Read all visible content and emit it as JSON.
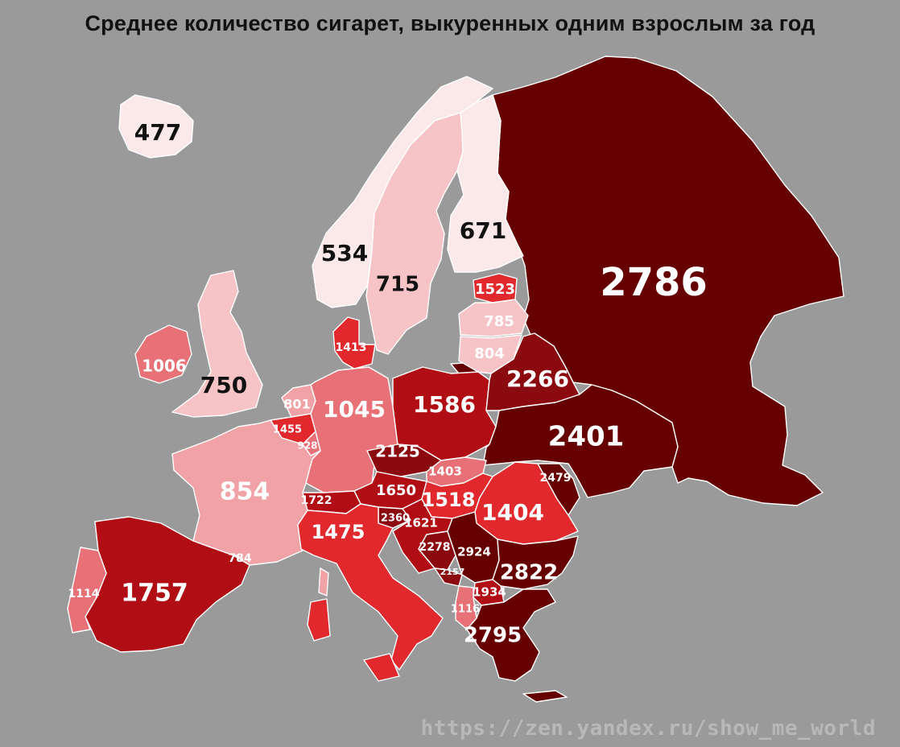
{
  "title": "Среднее количество сигарет, выкуренных одним взрослым за год",
  "watermark": "https://zen.yandex.ru/show_me_world",
  "colors": {
    "background": "#9a9a9a",
    "scale": [
      "#fbe8e9",
      "#f6c4c6",
      "#f0a2a6",
      "#e77176",
      "#e0282d",
      "#b00e14",
      "#8b0a10",
      "#660000"
    ]
  },
  "regions": [
    {
      "id": "iceland",
      "value": "477"
    },
    {
      "id": "norway",
      "value": "534"
    },
    {
      "id": "sweden",
      "value": "715"
    },
    {
      "id": "finland",
      "value": "671"
    },
    {
      "id": "russia",
      "value": "2786"
    },
    {
      "id": "estonia",
      "value": "1523"
    },
    {
      "id": "latvia",
      "value": "785"
    },
    {
      "id": "lithuania",
      "value": "804"
    },
    {
      "id": "belarus",
      "value": "2266"
    },
    {
      "id": "ukraine",
      "value": "2401"
    },
    {
      "id": "moldova",
      "value": "2479"
    },
    {
      "id": "poland",
      "value": "1586"
    },
    {
      "id": "germany",
      "value": "1045"
    },
    {
      "id": "denmark",
      "value": "1413"
    },
    {
      "id": "netherlands",
      "value": "801"
    },
    {
      "id": "belgium",
      "value": "1455"
    },
    {
      "id": "luxembourg",
      "value": "928"
    },
    {
      "id": "ireland",
      "value": "1006"
    },
    {
      "id": "united-kingdom",
      "value": "750"
    },
    {
      "id": "france",
      "value": "854"
    },
    {
      "id": "andorra",
      "value": "784"
    },
    {
      "id": "spain",
      "value": "1757"
    },
    {
      "id": "portugal",
      "value": "1114"
    },
    {
      "id": "switzerland",
      "value": "1722"
    },
    {
      "id": "italy",
      "value": "1475"
    },
    {
      "id": "austria",
      "value": "1650"
    },
    {
      "id": "czechia",
      "value": "2125"
    },
    {
      "id": "slovakia",
      "value": "1403"
    },
    {
      "id": "hungary",
      "value": "1518"
    },
    {
      "id": "slovenia",
      "value": "2360"
    },
    {
      "id": "croatia",
      "value": "1621"
    },
    {
      "id": "bosnia",
      "value": "2278"
    },
    {
      "id": "serbia",
      "value": "2924"
    },
    {
      "id": "montenegro",
      "value": "2157"
    },
    {
      "id": "albania",
      "value": "1116"
    },
    {
      "id": "north-macedonia",
      "value": "1934"
    },
    {
      "id": "romania",
      "value": "1404"
    },
    {
      "id": "bulgaria",
      "value": "2822"
    },
    {
      "id": "greece",
      "value": "2795"
    }
  ]
}
